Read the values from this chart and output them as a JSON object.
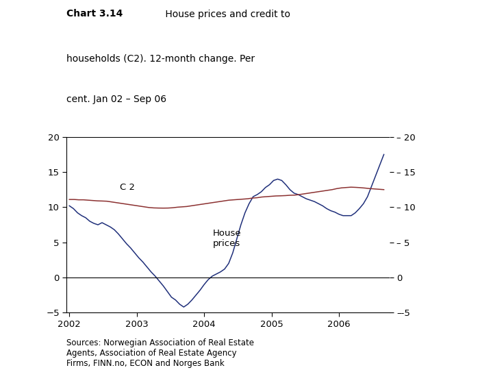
{
  "title_bold": "Chart 3.14",
  "title_rest": " House prices and credit to\nhouseholds (C2). 12-month change. Per\ncent. Jan 02 – Sep 06",
  "source_text": "Sources: Norwegian Association of Real Estate\nAgents, Association of Real Estate Agency\nFirms, FINN.no, ECON and Norges Bank",
  "ylim": [
    -5,
    20
  ],
  "yticks": [
    -5,
    0,
    5,
    10,
    15,
    20
  ],
  "xtick_labels": [
    "2002",
    "2003",
    "2004",
    "2005",
    "2006"
  ],
  "c2_label": "C 2",
  "hp_label": "House\nprices",
  "house_prices_color": "#1f2f7a",
  "c2_color": "#8b3030",
  "background_color": "#ffffff",
  "c2_data": [
    11.1,
    11.1,
    11.05,
    11.05,
    11.0,
    10.95,
    10.9,
    10.88,
    10.85,
    10.75,
    10.65,
    10.55,
    10.45,
    10.35,
    10.25,
    10.15,
    10.05,
    9.95,
    9.9,
    9.88,
    9.87,
    9.88,
    9.92,
    10.0,
    10.05,
    10.1,
    10.2,
    10.3,
    10.4,
    10.5,
    10.6,
    10.7,
    10.8,
    10.9,
    11.0,
    11.05,
    11.1,
    11.15,
    11.2,
    11.3,
    11.35,
    11.45,
    11.5,
    11.55,
    11.6,
    11.62,
    11.65,
    11.7,
    11.72,
    11.8,
    11.9,
    12.0,
    12.1,
    12.2,
    12.3,
    12.4,
    12.5,
    12.65,
    12.75,
    12.8,
    12.85,
    12.82,
    12.78,
    12.72,
    12.65,
    12.6,
    12.55,
    12.5
  ],
  "house_prices_data": [
    10.2,
    9.8,
    9.2,
    8.8,
    8.5,
    8.0,
    7.7,
    7.5,
    7.8,
    7.5,
    7.2,
    6.8,
    6.2,
    5.5,
    4.8,
    4.2,
    3.5,
    2.8,
    2.2,
    1.5,
    0.8,
    0.2,
    -0.5,
    -1.2,
    -2.0,
    -2.8,
    -3.2,
    -3.8,
    -4.2,
    -3.8,
    -3.2,
    -2.5,
    -1.8,
    -1.0,
    -0.3,
    0.2,
    0.5,
    0.8,
    1.2,
    2.0,
    3.5,
    5.5,
    7.5,
    9.2,
    10.5,
    11.5,
    11.8,
    12.2,
    12.8,
    13.2,
    13.8,
    14.0,
    13.8,
    13.2,
    12.5,
    12.0,
    11.8,
    11.5,
    11.2,
    11.0,
    10.8,
    10.5,
    10.2,
    9.8,
    9.5,
    9.3,
    9.0,
    8.8,
    8.8,
    8.8,
    9.2,
    9.8,
    10.5,
    11.5,
    13.0,
    14.5,
    16.0,
    17.5
  ]
}
